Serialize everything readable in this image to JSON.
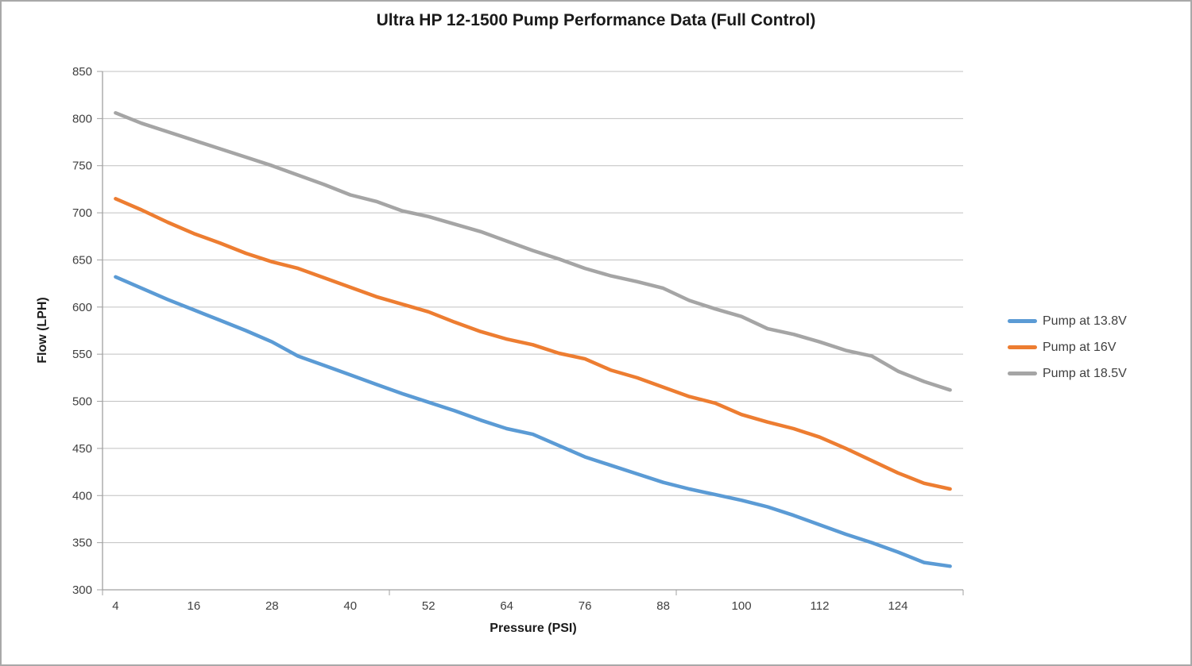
{
  "chart_data": {
    "type": "line",
    "title": "Ultra HP 12-1500 Pump Performance Data (Full Control)",
    "xlabel": "Pressure (PSI)",
    "ylabel": "Flow (LPH)",
    "ylim": [
      300,
      850
    ],
    "ytick_step": 50,
    "yticks": [
      850,
      800,
      750,
      700,
      650,
      600,
      550,
      500,
      450,
      400,
      350,
      300
    ],
    "grid": true,
    "legend_position": "right",
    "x": [
      4,
      8,
      12,
      16,
      20,
      24,
      28,
      32,
      36,
      40,
      44,
      48,
      52,
      56,
      60,
      64,
      68,
      72,
      76,
      80,
      84,
      88,
      92,
      96,
      100,
      104,
      108,
      112,
      116,
      120,
      124,
      128,
      132
    ],
    "x_tick_labels": [
      "4",
      "16",
      "28",
      "40",
      "52",
      "64",
      "76",
      "88",
      "100",
      "112",
      "124"
    ],
    "x_tick_label_interval": 3,
    "series": [
      {
        "name": "Pump at 13.8V",
        "color": "#5b9bd5",
        "values": [
          632,
          620,
          608,
          597,
          586,
          575,
          563,
          548,
          538,
          528,
          518,
          508,
          499,
          490,
          480,
          471,
          465,
          453,
          441,
          432,
          423,
          414,
          407,
          401,
          395,
          388,
          379,
          369,
          359,
          350,
          340,
          329,
          325
        ]
      },
      {
        "name": "Pump at 16V",
        "color": "#ed7d31",
        "values": [
          715,
          703,
          690,
          678,
          668,
          657,
          648,
          641,
          631,
          621,
          611,
          603,
          595,
          584,
          574,
          566,
          560,
          551,
          545,
          533,
          525,
          515,
          505,
          498,
          486,
          478,
          471,
          462,
          450,
          437,
          424,
          413,
          407
        ]
      },
      {
        "name": "Pump at 18.5V",
        "color": "#a5a5a5",
        "values": [
          806,
          795,
          786,
          777,
          768,
          759,
          750,
          740,
          730,
          719,
          712,
          702,
          696,
          688,
          680,
          670,
          660,
          651,
          641,
          633,
          627,
          620,
          607,
          598,
          590,
          577,
          571,
          563,
          554,
          548,
          532,
          521,
          512
        ]
      }
    ]
  },
  "colors": {
    "gridline": "#c0c0c0",
    "axis_line": "#a0a0a0",
    "tick_text": "#404040",
    "frame_border": "#a9a9a9",
    "background": "#ffffff"
  }
}
